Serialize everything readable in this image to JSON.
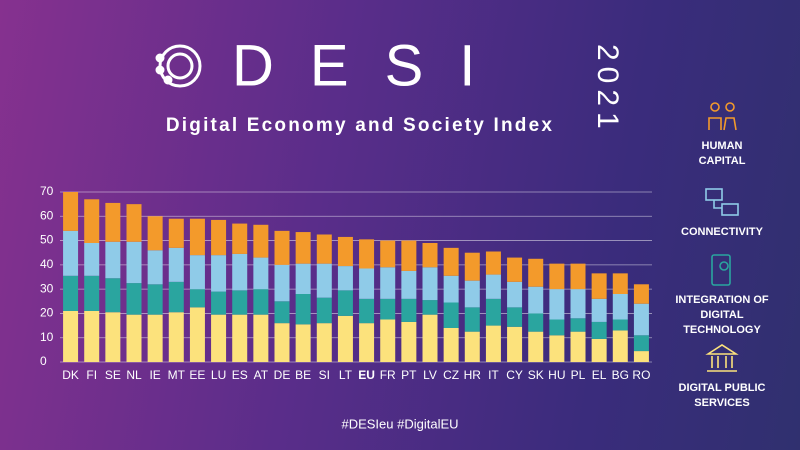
{
  "chart_data": {
    "type": "stacked-bar",
    "title": "DESI",
    "year": "2021",
    "subtitle": "Digital Economy and Society Index",
    "footer": "#DESIeu  #DigitalEU",
    "categories": [
      "DK",
      "FI",
      "SE",
      "NL",
      "IE",
      "MT",
      "EE",
      "LU",
      "ES",
      "AT",
      "DE",
      "BE",
      "SI",
      "LT",
      "EU",
      "FR",
      "PT",
      "LV",
      "CZ",
      "HR",
      "IT",
      "CY",
      "SK",
      "HU",
      "PL",
      "EL",
      "BG",
      "RO"
    ],
    "highlight_index": 14,
    "series": [
      {
        "name": "HUMAN CAPITAL",
        "color": "#f39a2b",
        "values": [
          16,
          18,
          16,
          15.5,
          14,
          12,
          15,
          14.5,
          12.5,
          13.5,
          14,
          13,
          12,
          12,
          12,
          11,
          12.5,
          10,
          11.5,
          11.5,
          9.5,
          10,
          11.5,
          10.5,
          10.5,
          10.5,
          8.5,
          8
        ]
      },
      {
        "name": "CONNECTIVITY",
        "color": "#8fcbe8",
        "values": [
          18.5,
          13.5,
          15,
          17,
          14,
          14,
          14,
          15,
          15,
          13,
          15,
          12.5,
          14,
          10,
          12.5,
          13,
          11.5,
          13.5,
          11,
          11,
          10,
          10.5,
          11,
          12.5,
          12,
          9.5,
          10.5,
          13
        ]
      },
      {
        "name": "INTEGRATION OF DIGITAL TECHNOLOGY",
        "color": "#2aa59f",
        "values": [
          14.5,
          14.5,
          14,
          13,
          12.5,
          12.5,
          7.5,
          9.5,
          10,
          10.5,
          9,
          12.5,
          10.5,
          10.5,
          10,
          8.5,
          9.5,
          6,
          10.5,
          10,
          11,
          8,
          7.5,
          6.5,
          5.5,
          7,
          4.5,
          6.5
        ]
      },
      {
        "name": "DIGITAL PUBLIC SERVICES",
        "color": "#fce27c",
        "values": [
          21,
          21,
          20.5,
          19.5,
          19.5,
          20.5,
          22.5,
          19.5,
          19.5,
          19.5,
          16,
          15.5,
          16,
          19,
          16,
          17.5,
          16.5,
          19.5,
          14,
          12.5,
          15,
          14.5,
          12.5,
          11,
          12.5,
          9.5,
          13,
          4.5
        ]
      }
    ],
    "stack_from": "last",
    "ylim": [
      0,
      70
    ],
    "yticks": [
      0,
      10,
      20,
      30,
      40,
      50,
      60,
      70
    ],
    "grid": true
  }
}
